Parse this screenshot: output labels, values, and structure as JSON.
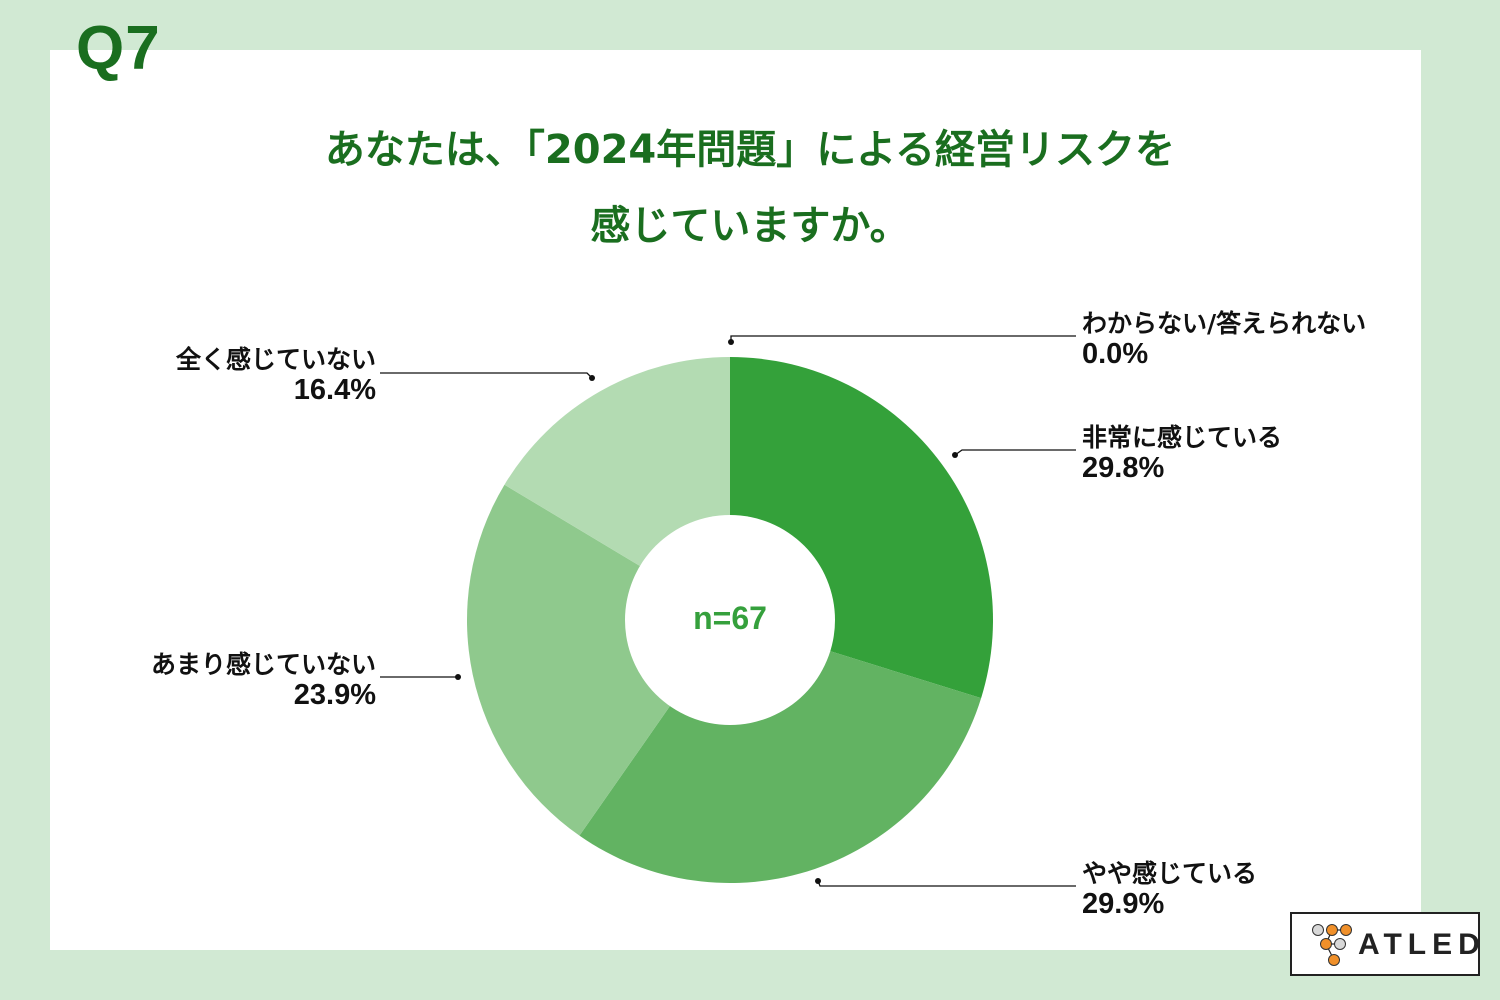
{
  "question": {
    "number": "Q7",
    "title_line1": "あなたは、「2024年問題」による経営リスクを",
    "title_line2": "感じていますか。"
  },
  "center_label": "n=67",
  "labels": {
    "unknown": {
      "name": "わからない/答えられない",
      "pct": "0.0%"
    },
    "very": {
      "name": "非常に感じている",
      "pct": "29.8%"
    },
    "somewhat": {
      "name": "やや感じている",
      "pct": "29.9%"
    },
    "notmuch": {
      "name": "あまり感じていない",
      "pct": "23.9%"
    },
    "notatall": {
      "name": "全く感じていない",
      "pct": "16.4%"
    }
  },
  "logo": {
    "text": "ATLED"
  },
  "colors": {
    "background": "#d1e9d3",
    "title": "#1a6e1f",
    "slice_very": "#34a13a",
    "slice_somewhat": "#62b362",
    "slice_notmuch": "#8fc98d",
    "slice_notatall": "#b3dbb2",
    "logo_orange": "#f0902a"
  },
  "chart_data": {
    "type": "pie",
    "subtype": "donut",
    "title": "あなたは、「2024年問題」による経営リスクを感じていますか。",
    "sample_size": 67,
    "categories": [
      "非常に感じている",
      "やや感じている",
      "あまり感じていない",
      "全く感じていない",
      "わからない/答えられない"
    ],
    "values": [
      29.8,
      29.9,
      23.9,
      16.4,
      0.0
    ],
    "unit": "%",
    "start_angle": "12 o'clock",
    "direction": "clockwise",
    "legend": "callout labels"
  }
}
